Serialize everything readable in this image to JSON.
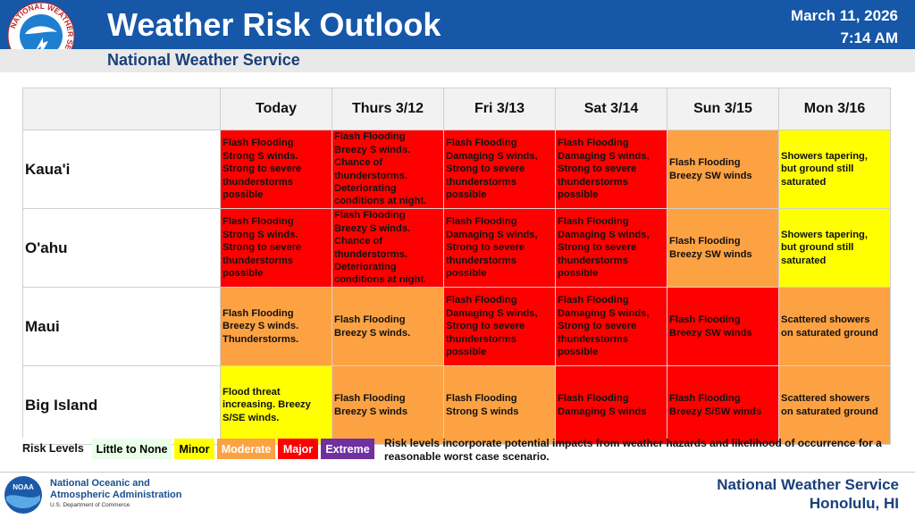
{
  "header": {
    "title": "Weather Risk Outlook",
    "subtitle": "National Weather Service",
    "date": "March 11, 2026",
    "time": "7:14 AM",
    "logo_text": "NATIONAL WEATHER SERVICE"
  },
  "table": {
    "columns": [
      "Today",
      "Thurs 3/12",
      "Fri 3/13",
      "Sat 3/14",
      "Sun 3/15",
      "Mon 3/16"
    ],
    "rows": [
      {
        "label": "Kaua'i",
        "cells": [
          {
            "color": "#ff0000",
            "lines": [
              "Flash Flooding",
              "Strong S winds.",
              "Strong to severe",
              "thunderstorms",
              "possible"
            ]
          },
          {
            "color": "#ff0000",
            "lines": [
              "Flash Flooding",
              "Breezy S winds.",
              "Chance of",
              "thunderstorms.",
              "Deteriorating",
              "conditions at night."
            ]
          },
          {
            "color": "#ff0000",
            "lines": [
              "Flash Flooding",
              "Damaging S winds,",
              "Strong to severe",
              "thunderstorms",
              "possible"
            ]
          },
          {
            "color": "#ff0000",
            "lines": [
              "Flash Flooding",
              "Damaging S winds,",
              "Strong to severe",
              "thunderstorms",
              "possible"
            ]
          },
          {
            "color": "#fca243",
            "lines": [
              "Flash Flooding",
              "Breezy SW winds"
            ]
          },
          {
            "color": "#ffff00",
            "lines": [
              "Showers tapering,",
              "but ground still",
              "saturated"
            ]
          }
        ]
      },
      {
        "label": "O'ahu",
        "cells": [
          {
            "color": "#ff0000",
            "lines": [
              "Flash Flooding",
              "Strong S winds.",
              "Strong to severe",
              "thunderstorms",
              "possible"
            ]
          },
          {
            "color": "#ff0000",
            "lines": [
              "Flash Flooding",
              "Breezy S winds.",
              "Chance of",
              "thunderstorms.",
              "Deteriorating",
              "conditions at night."
            ]
          },
          {
            "color": "#ff0000",
            "lines": [
              "Flash Flooding",
              "Damaging S winds,",
              "Strong to severe",
              "thunderstorms",
              "possible"
            ]
          },
          {
            "color": "#ff0000",
            "lines": [
              "Flash Flooding",
              "Damaging S winds,",
              "Strong to severe",
              "thunderstorms",
              "possible"
            ]
          },
          {
            "color": "#fca243",
            "lines": [
              "Flash Flooding",
              "Breezy SW winds"
            ]
          },
          {
            "color": "#ffff00",
            "lines": [
              "Showers tapering,",
              "but ground still",
              "saturated"
            ]
          }
        ]
      },
      {
        "label": "Maui",
        "cells": [
          {
            "color": "#fca243",
            "lines": [
              "Flash Flooding",
              "Breezy S winds.",
              "Thunderstorms."
            ]
          },
          {
            "color": "#fca243",
            "lines": [
              "Flash Flooding",
              "Breezy S winds."
            ]
          },
          {
            "color": "#ff0000",
            "lines": [
              "Flash Flooding",
              "Damaging S winds,",
              "Strong to severe",
              "thunderstorms",
              "possible"
            ]
          },
          {
            "color": "#ff0000",
            "lines": [
              "Flash Flooding",
              "Damaging S winds,",
              "Strong to severe",
              "thunderstorms",
              "possible"
            ]
          },
          {
            "color": "#ff0000",
            "lines": [
              "Flash Flooding",
              "Breezy SW winds"
            ]
          },
          {
            "color": "#fca243",
            "lines": [
              "Scattered showers",
              "on saturated ground"
            ]
          }
        ]
      },
      {
        "label": "Big Island",
        "cells": [
          {
            "color": "#ffff00",
            "lines": [
              "Flood threat",
              "increasing. Breezy",
              "S/SE winds."
            ]
          },
          {
            "color": "#fca243",
            "lines": [
              "Flash Flooding",
              "Breezy S winds"
            ]
          },
          {
            "color": "#fca243",
            "lines": [
              "Flash Flooding",
              "Strong S winds"
            ]
          },
          {
            "color": "#ff0000",
            "lines": [
              "Flash Flooding",
              "Damaging S winds"
            ]
          },
          {
            "color": "#ff0000",
            "lines": [
              "Flash Flooding",
              "Breezy S/SW winds"
            ]
          },
          {
            "color": "#fca243",
            "lines": [
              "Scattered showers",
              "on saturated ground"
            ]
          }
        ]
      }
    ]
  },
  "legend": {
    "title": "Risk Levels",
    "levels": [
      {
        "name": "Little to None",
        "color": "#eaffea",
        "text_color": "#000000"
      },
      {
        "name": "Minor",
        "color": "#ffff00",
        "text_color": "#000000"
      },
      {
        "name": "Moderate",
        "color": "#fca243",
        "text_color": "#ffffff"
      },
      {
        "name": "Major",
        "color": "#ff0000",
        "text_color": "#ffffff"
      },
      {
        "name": "Extreme",
        "color": "#7030a0",
        "text_color": "#ffffff"
      }
    ],
    "note": "Risk levels incorporate potential impacts from weather hazards and likelihood of occurrence for a reasonable worst case scenario."
  },
  "footer": {
    "agency_line1": "National Oceanic and",
    "agency_line2": "Atmospheric Administration",
    "department": "U.S. Department of Commerce",
    "logo_text": "NOAA",
    "office": "National Weather Service",
    "location": "Honolulu, HI"
  }
}
